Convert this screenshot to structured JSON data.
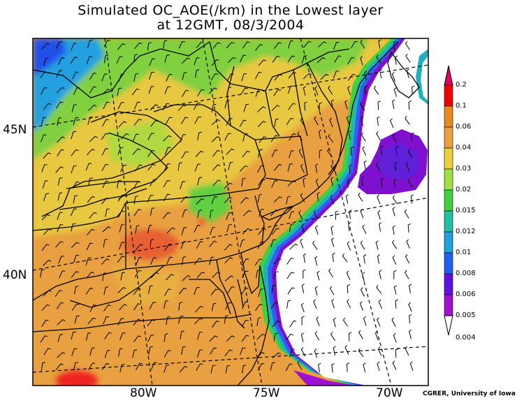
{
  "title": {
    "line1": "Simulated OC_AOE(/km) in the Lowest layer",
    "line2": "at 12GMT, 08/3/2004"
  },
  "axes": {
    "lon_labels": [
      "80W",
      "75W",
      "70W"
    ],
    "lat_labels": [
      "45N",
      "40N"
    ]
  },
  "colorbar": {
    "labels": [
      "0.2",
      "0.1",
      "0.06",
      "0.04",
      "0.03",
      "0.02",
      "0.015",
      "0.012",
      "0.01",
      "0.008",
      "0.006",
      "0.005",
      "0.004"
    ],
    "colors": [
      "#e0005a",
      "#f00000",
      "#e88a20",
      "#eca040",
      "#e8d040",
      "#a0e040",
      "#40d040",
      "#20c0a0",
      "#20a0e0",
      "#2060f0",
      "#6010e0",
      "#a010d0",
      "#ffffff"
    ]
  },
  "credit": "CGRER, University of Iowa"
}
